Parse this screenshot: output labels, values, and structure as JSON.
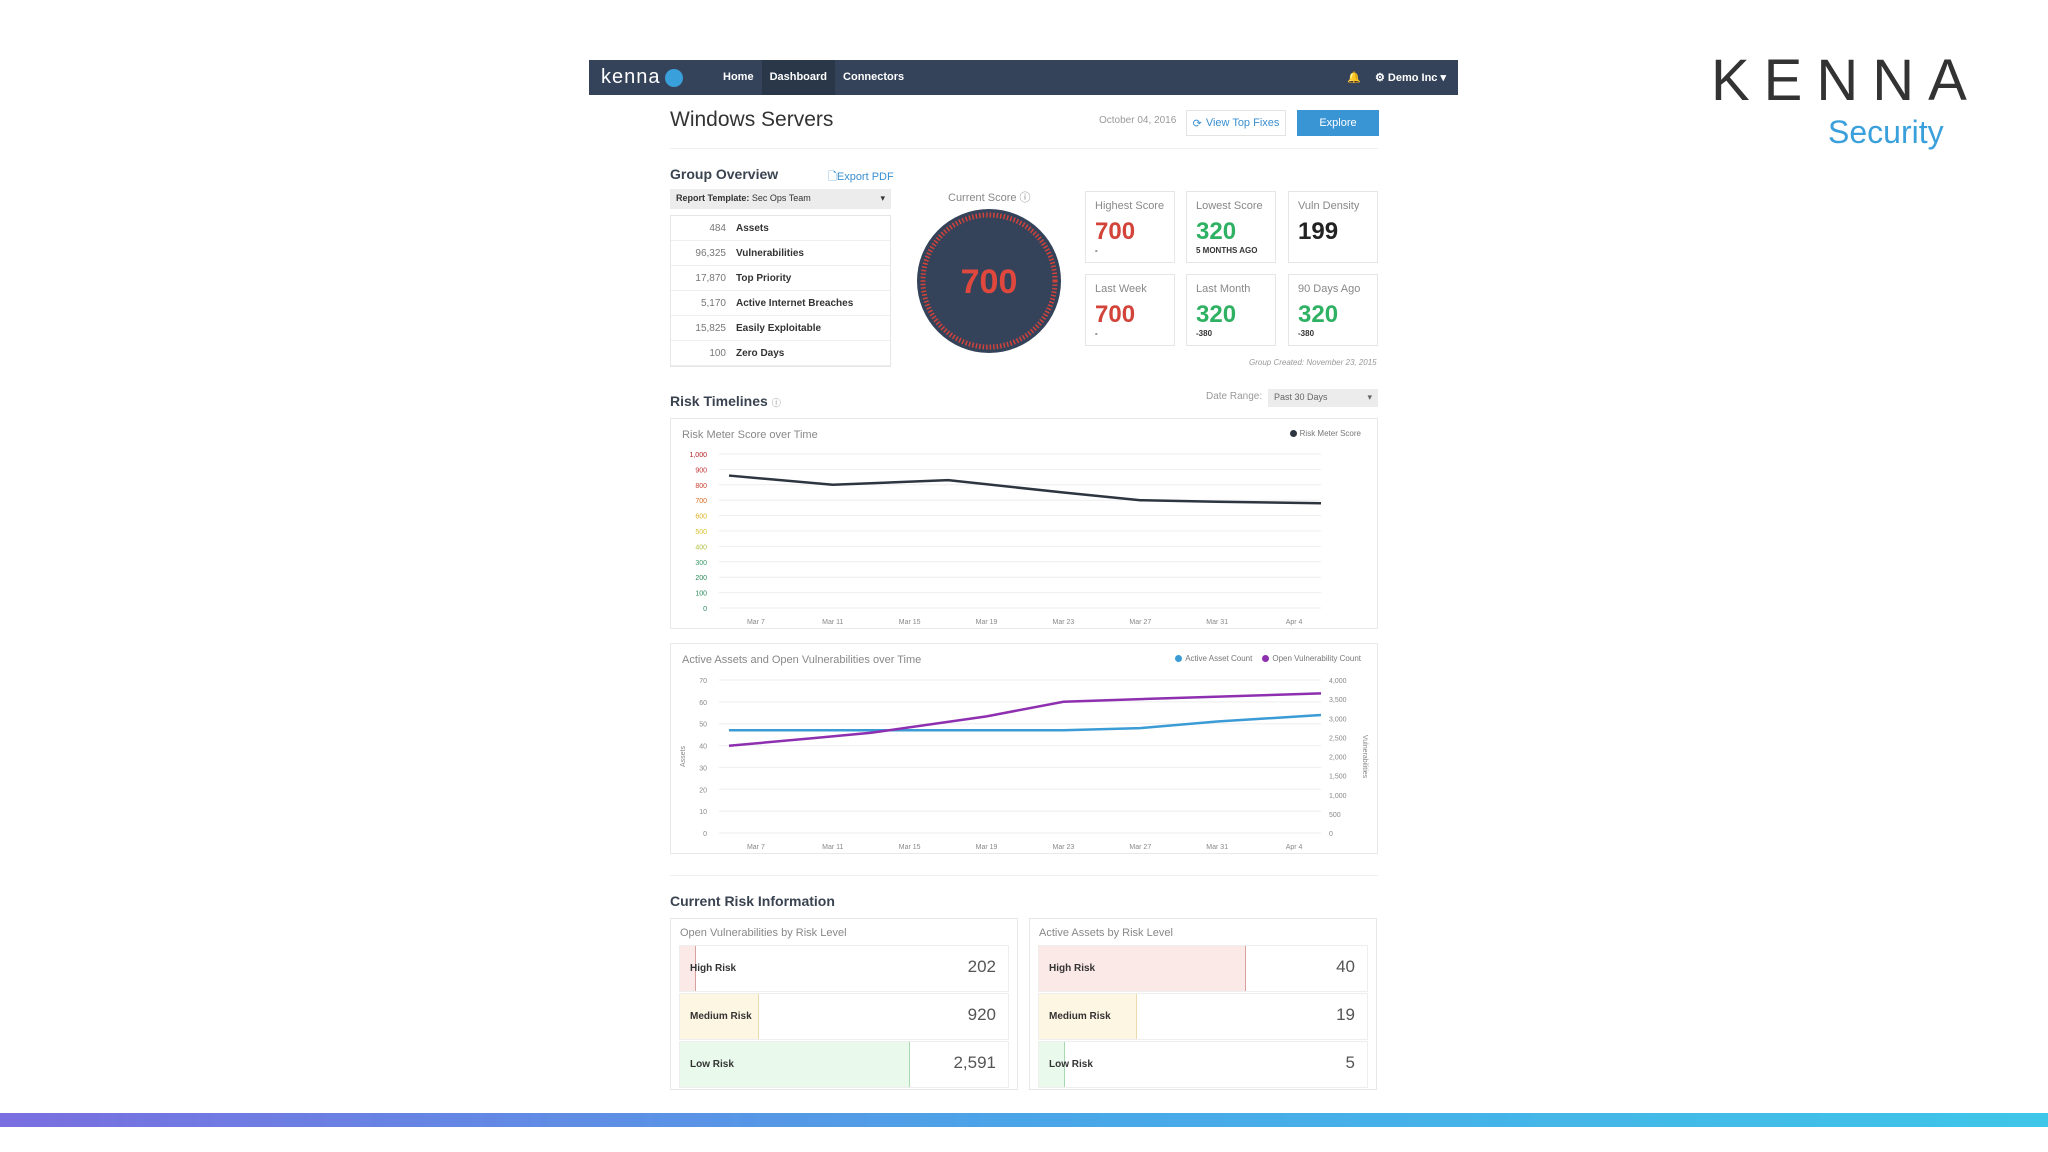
{
  "nav": {
    "logo": "kenna",
    "items": [
      "Home",
      "Dashboard",
      "Connectors"
    ],
    "active": "Dashboard",
    "user": "Demo Inc ▾"
  },
  "header": {
    "title": "Windows Servers",
    "date": "October 04, 2016",
    "view_top_fixes": "View Top Fixes",
    "explore": "Explore"
  },
  "overview": {
    "title": "Group Overview",
    "export": "Export PDF",
    "template_label": "Report Template:",
    "template_value": "Sec Ops Team",
    "rows": [
      {
        "n": "484",
        "l": "Assets"
      },
      {
        "n": "96,325",
        "l": "Vulnerabilities"
      },
      {
        "n": "17,870",
        "l": "Top Priority"
      },
      {
        "n": "5,170",
        "l": "Active Internet Breaches"
      },
      {
        "n": "15,825",
        "l": "Easily Exploitable"
      },
      {
        "n": "100",
        "l": "Zero Days"
      }
    ]
  },
  "score": {
    "label": "Current Score",
    "value": "700",
    "cards": [
      {
        "label": "Highest Score",
        "value": "700",
        "sub": "-",
        "color": "red"
      },
      {
        "label": "Lowest Score",
        "value": "320",
        "sub": "5 MONTHS AGO",
        "color": "grn"
      },
      {
        "label": "Vuln Density",
        "value": "199",
        "sub": "",
        "color": "blk"
      },
      {
        "label": "Last Week",
        "value": "700",
        "sub": "-",
        "color": "red"
      },
      {
        "label": "Last Month",
        "value": "320",
        "sub": "-380",
        "color": "grn"
      },
      {
        "label": "90 Days Ago",
        "value": "320",
        "sub": "-380",
        "color": "grn"
      }
    ],
    "group_created": "Group Created: November 23, 2015"
  },
  "timelines": {
    "title": "Risk Timelines",
    "date_range_label": "Date Range:",
    "date_range": "Past 30 Days"
  },
  "chart_data": [
    {
      "type": "line",
      "title": "Risk Meter Score over Time",
      "x_ticks": [
        "Mar 7",
        "Mar 11",
        "Mar 15",
        "Mar 19",
        "Mar 23",
        "Mar 27",
        "Mar 31",
        "Apr 4"
      ],
      "x_unit": "days since Mar 7",
      "ylim": [
        0,
        1000
      ],
      "y_ticks": [
        "0",
        "100",
        "200",
        "300",
        "400",
        "500",
        "600",
        "700",
        "800",
        "900",
        "1,000"
      ],
      "series": [
        {
          "name": "Risk Meter Score",
          "color": "#2d3540",
          "x": [
            -1.4,
            4,
            10,
            16,
            20,
            24,
            29.4
          ],
          "y": [
            860,
            800,
            830,
            750,
            700,
            690,
            680
          ]
        }
      ]
    },
    {
      "type": "line",
      "title": "Active Assets and Open Vulnerabilities over Time",
      "x_ticks": [
        "Mar 7",
        "Mar 11",
        "Mar 15",
        "Mar 19",
        "Mar 23",
        "Mar 27",
        "Mar 31",
        "Apr 4"
      ],
      "ylabel": "Assets",
      "y2label": "Vulnerabilities",
      "ylim": [
        0,
        70
      ],
      "y2lim": [
        0,
        4000
      ],
      "y_ticks": [
        "0",
        "10",
        "20",
        "30",
        "40",
        "50",
        "60",
        "70"
      ],
      "y2_ticks": [
        "0",
        "500",
        "1,000",
        "1,500",
        "2,000",
        "2,500",
        "3,000",
        "3,500",
        "4,000"
      ],
      "series": [
        {
          "name": "Active Asset Count",
          "color": "#3a9bd5",
          "axis": "left",
          "x": [
            -1.4,
            4,
            10,
            16,
            20,
            24,
            29.4
          ],
          "y": [
            47,
            47,
            47,
            47,
            48,
            51,
            54
          ]
        },
        {
          "name": "Open Vulnerability Count",
          "color": "#8e2fb0",
          "axis": "right",
          "x": [
            -1.4,
            3,
            6,
            12,
            16,
            20,
            29.4
          ],
          "y": [
            2280,
            2480,
            2620,
            3050,
            3430,
            3500,
            3650
          ]
        }
      ]
    }
  ],
  "risk": {
    "title": "Current Risk Information",
    "vulns": {
      "title": "Open Vulnerabilities by Risk Level",
      "rows": [
        {
          "label": "High Risk",
          "value": "202",
          "fraction": 0.05
        },
        {
          "label": "Medium Risk",
          "value": "920",
          "fraction": 0.24
        },
        {
          "label": "Low Risk",
          "value": "2,591",
          "fraction": 0.7
        }
      ]
    },
    "assets": {
      "title": "Active Assets by Risk Level",
      "rows": [
        {
          "label": "High Risk",
          "value": "40",
          "fraction": 0.63
        },
        {
          "label": "Medium Risk",
          "value": "19",
          "fraction": 0.3
        },
        {
          "label": "Low Risk",
          "value": "5",
          "fraction": 0.08
        }
      ]
    }
  },
  "brand": {
    "name": "KENNA",
    "sub": "Security"
  }
}
